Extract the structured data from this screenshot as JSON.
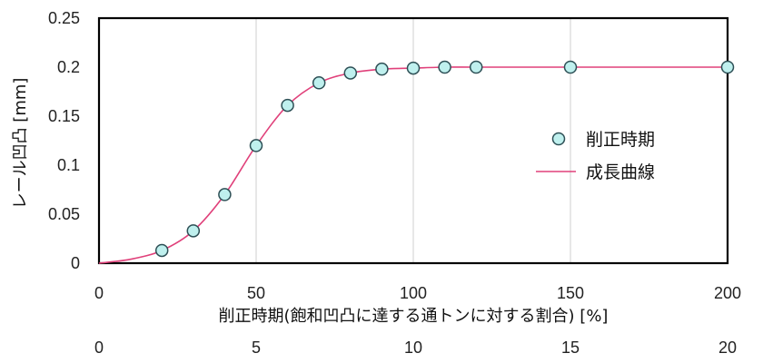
{
  "chart_data": {
    "type": "scatter",
    "xlabel": "削正時期(飽和凹凸に達する通トンに対する割合) [%]",
    "ylabel": "レール凹凸 [mm]",
    "xlim": [
      0,
      200
    ],
    "ylim": [
      0,
      0.25
    ],
    "x_ticks": [
      "0",
      "50",
      "100",
      "150",
      "200"
    ],
    "x2_ticks": [
      "0",
      "5",
      "10",
      "15",
      "20"
    ],
    "y_ticks": [
      "0",
      "0.05",
      "0.1",
      "0.15",
      "0.2",
      "0.25"
    ],
    "grid": "vertical",
    "legend_position": "right",
    "series": [
      {
        "name": "削正時期",
        "kind": "markers",
        "color": "#bff0ee",
        "x": [
          20,
          30,
          40,
          50,
          60,
          70,
          80,
          90,
          100,
          110,
          120,
          150,
          200
        ],
        "y": [
          0.013,
          0.033,
          0.07,
          0.12,
          0.161,
          0.184,
          0.194,
          0.198,
          0.199,
          0.2,
          0.2,
          0.2,
          0.2
        ]
      },
      {
        "name": "成長曲線",
        "kind": "line",
        "color": "#e0407a",
        "x": [
          0,
          10,
          20,
          30,
          40,
          50,
          60,
          70,
          80,
          90,
          100,
          110,
          120,
          150,
          200
        ],
        "y": [
          0.0,
          0.004,
          0.013,
          0.033,
          0.07,
          0.12,
          0.161,
          0.184,
          0.194,
          0.198,
          0.199,
          0.2,
          0.2,
          0.2,
          0.2
        ]
      }
    ]
  }
}
